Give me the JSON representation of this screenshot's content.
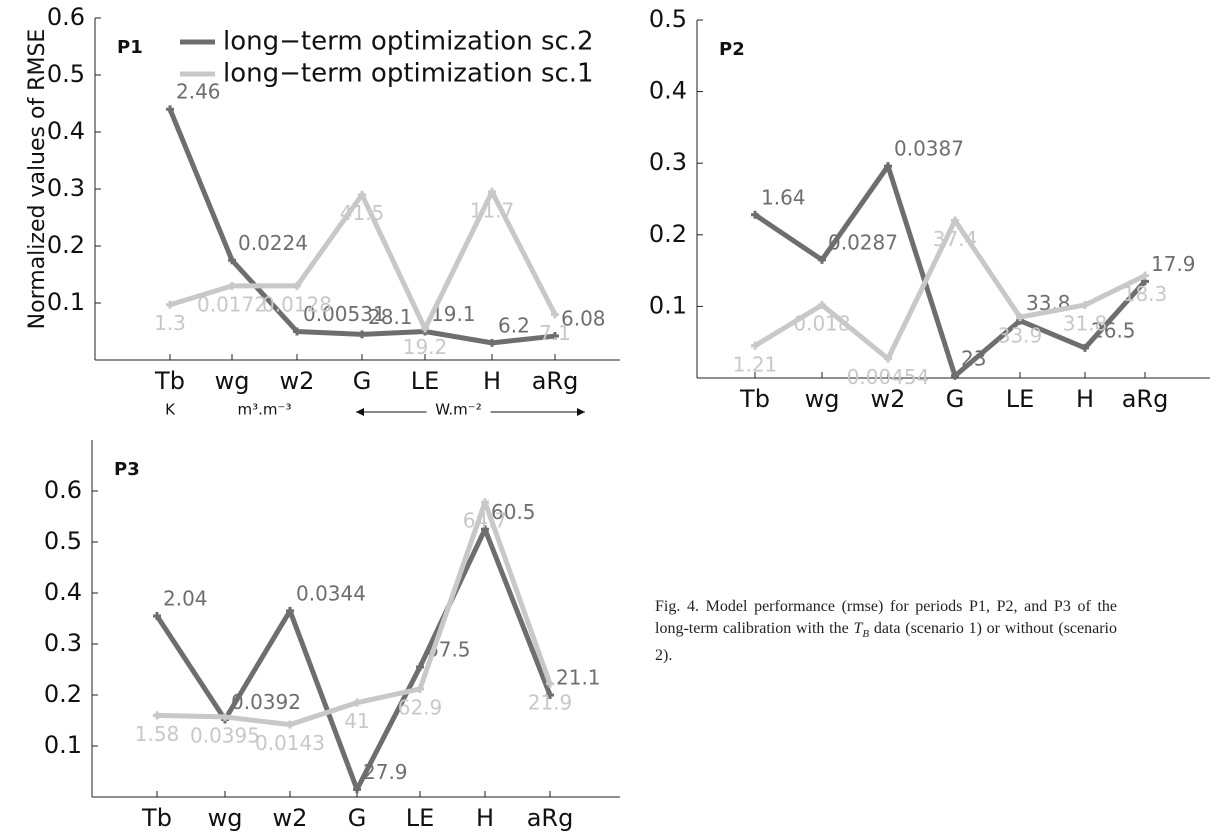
{
  "chart_data": [
    {
      "type": "line",
      "title": "P1",
      "ylabel": "Normalized values of RMSE",
      "categories": [
        "Tb",
        "wg",
        "w2",
        "G",
        "LE",
        "H",
        "aRg"
      ],
      "x_units": [
        "K",
        "m³.m⁻³",
        "W.m⁻²"
      ],
      "ylim": [
        0,
        0.6
      ],
      "yticks": [
        0.1,
        0.2,
        0.3,
        0.4,
        0.5,
        0.6
      ],
      "series": [
        {
          "name": "long−term optimization sc.2",
          "color": "#6e6e6e",
          "values": [
            0.44,
            0.175,
            0.05,
            0.045,
            0.05,
            0.03,
            0.042
          ],
          "annotations": [
            "2.46",
            "0.0224",
            "0.00531",
            "28.1",
            "19.1",
            "6.2",
            "6.08"
          ]
        },
        {
          "name": "long−term optimization sc.1",
          "color": "#c8c8c8",
          "values": [
            0.097,
            0.13,
            0.13,
            0.29,
            0.055,
            0.295,
            0.08
          ],
          "annotations": [
            "1.3",
            "0.0172",
            "0.0128",
            "41.5",
            "19.2",
            "11.7",
            "7.1"
          ]
        }
      ]
    },
    {
      "type": "line",
      "title": "P2",
      "categories": [
        "Tb",
        "wg",
        "w2",
        "G",
        "LE",
        "H",
        "aRg"
      ],
      "ylim": [
        0,
        0.5
      ],
      "yticks": [
        0.1,
        0.2,
        0.3,
        0.4,
        0.5
      ],
      "series": [
        {
          "color": "#6e6e6e",
          "values": [
            0.228,
            0.165,
            0.296,
            0.003,
            0.08,
            0.042,
            0.135
          ],
          "annotations": [
            "1.64",
            "0.0287",
            "0.0387",
            "23",
            "33.8",
            "26.5",
            "17.9"
          ]
        },
        {
          "color": "#c8c8c8",
          "values": [
            0.045,
            0.102,
            0.027,
            0.22,
            0.085,
            0.102,
            0.143
          ],
          "annotations": [
            "1.21",
            "0.018",
            "0.00454",
            "37.4",
            "33.9",
            "31.8",
            "18.3"
          ]
        }
      ]
    },
    {
      "type": "line",
      "title": "P3",
      "categories": [
        "Tb",
        "wg",
        "w2",
        "G",
        "LE",
        "H",
        "aRg"
      ],
      "ylim": [
        0,
        0.7
      ],
      "yticks": [
        0.1,
        0.2,
        0.3,
        0.4,
        0.5,
        0.6
      ],
      "series": [
        {
          "color": "#6e6e6e",
          "values": [
            0.355,
            0.152,
            0.365,
            0.015,
            0.255,
            0.525,
            0.2
          ],
          "annotations": [
            "2.04",
            "0.0392",
            "0.0344",
            "27.9",
            "67.5",
            "60.5",
            "21.1"
          ]
        },
        {
          "color": "#c8c8c8",
          "values": [
            0.16,
            0.157,
            0.142,
            0.185,
            0.212,
            0.578,
            0.222
          ],
          "annotations": [
            "1.58",
            "0.0395",
            "0.0143",
            "41",
            "62.9",
            "64.7",
            "21.9"
          ]
        }
      ]
    }
  ],
  "caption": [
    "Fig. 4. Model performance (rmse) for periods P1, P2, and P3 of the long-term calibration with the ",
    "T",
    "B",
    " data (scenario 1) or without (scenario 2)."
  ]
}
